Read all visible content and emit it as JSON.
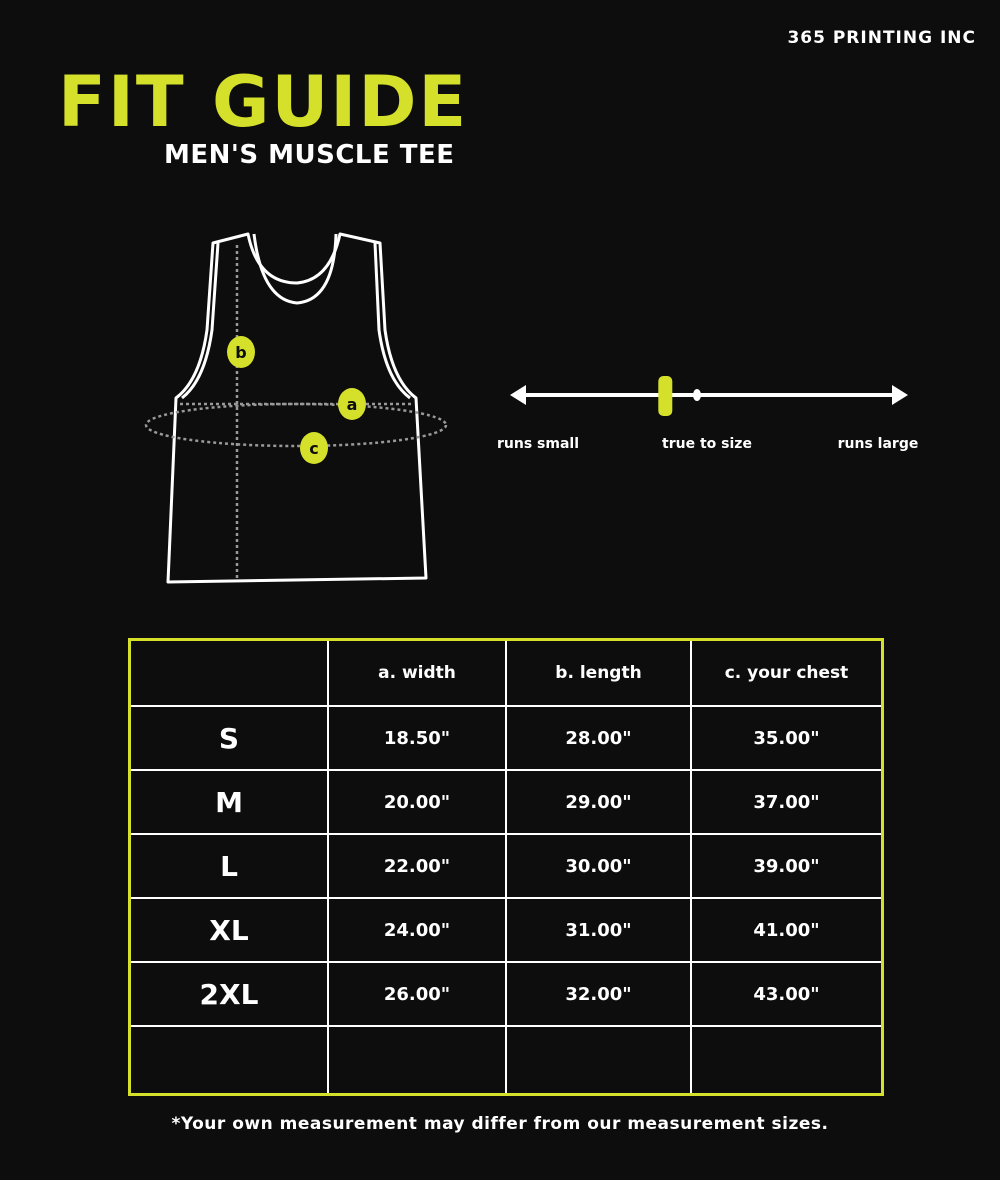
{
  "brand": "365 PRINTING INC",
  "title": "FIT GUIDE",
  "subtitle": "MEN'S MUSCLE TEE",
  "colors": {
    "accent": "#d4e02a",
    "background": "#0d0d0d",
    "text": "#ffffff"
  },
  "diagram": {
    "markers": [
      "a",
      "b",
      "c"
    ]
  },
  "fit_scale": {
    "labels": [
      "runs small",
      "true to size",
      "runs large"
    ],
    "value_fraction": 0.39
  },
  "table": {
    "headers": [
      "",
      "a. width",
      "b. length",
      "c. your chest"
    ],
    "rows": [
      [
        "S",
        "18.50\"",
        "28.00\"",
        "35.00\""
      ],
      [
        "M",
        "20.00\"",
        "29.00\"",
        "37.00\""
      ],
      [
        "L",
        "22.00\"",
        "30.00\"",
        "39.00\""
      ],
      [
        "XL",
        "24.00\"",
        "31.00\"",
        "41.00\""
      ],
      [
        "2XL",
        "26.00\"",
        "32.00\"",
        "43.00\""
      ],
      [
        "",
        "",
        "",
        ""
      ]
    ]
  },
  "footnote": "*Your own measurement may differ from our measurement sizes."
}
